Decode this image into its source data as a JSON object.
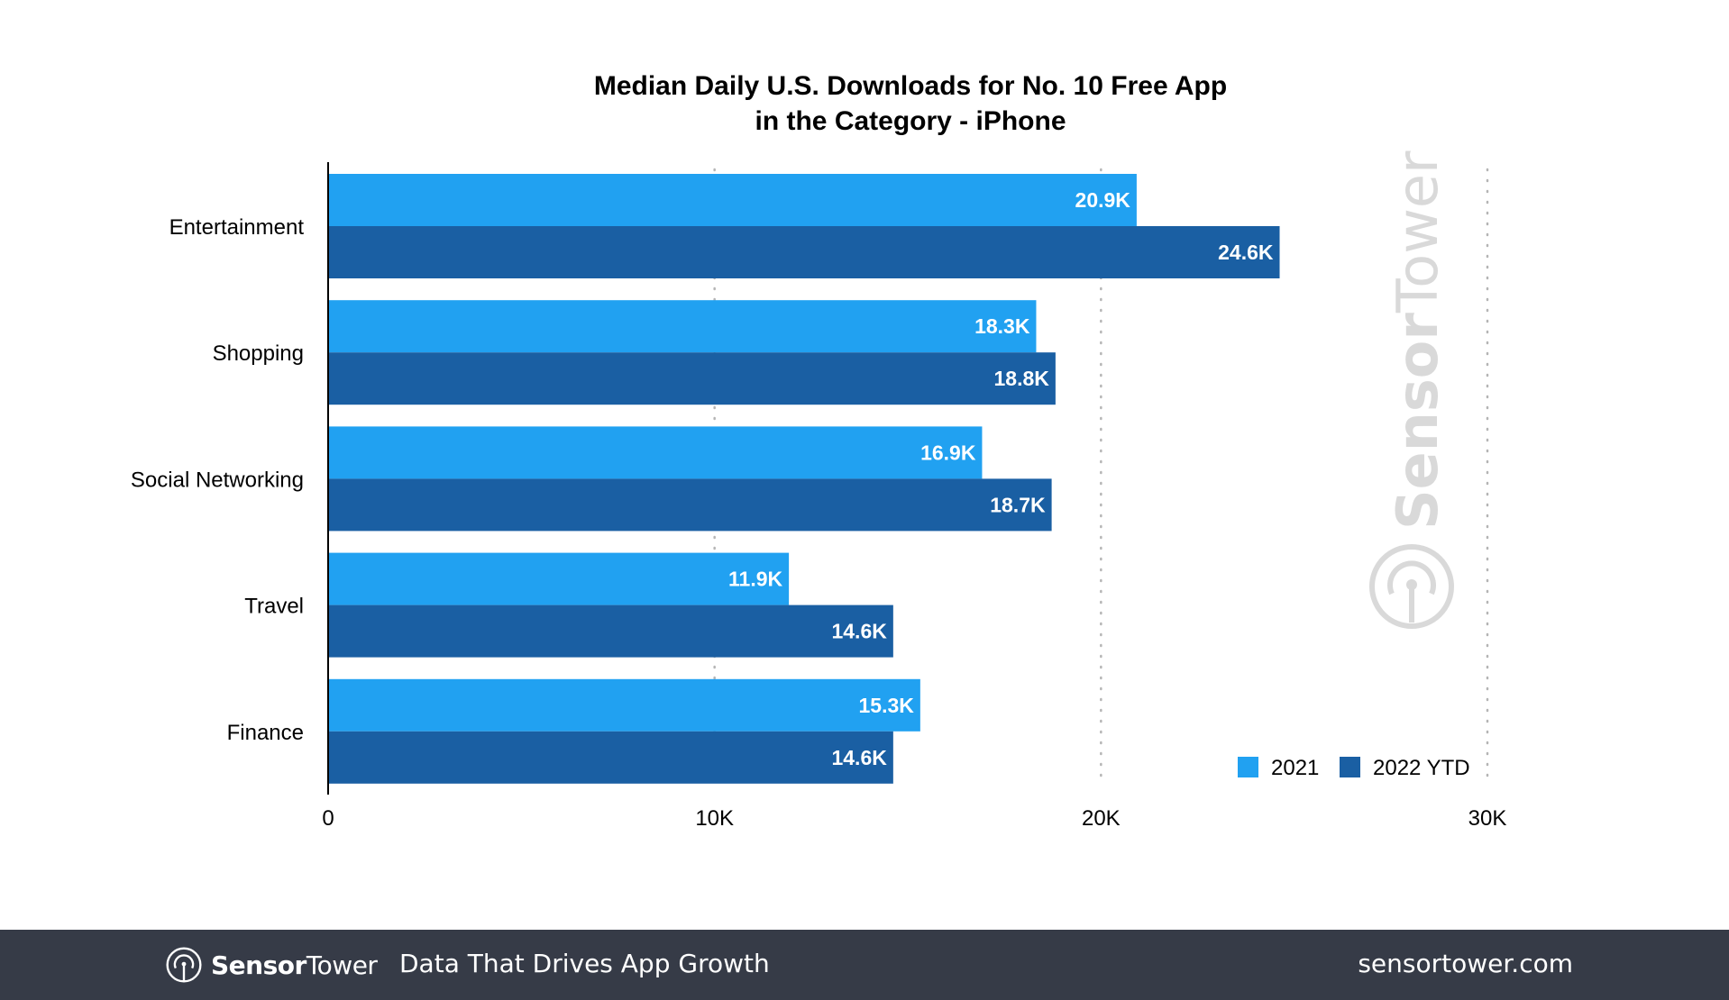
{
  "chart_data": {
    "type": "bar",
    "orientation": "horizontal",
    "title": "Median Daily U.S. Downloads for No. 10 Free App in the Category - iPhone",
    "title_lines": [
      "Median Daily U.S. Downloads for No. 10 Free App",
      "in the Category - iPhone"
    ],
    "categories": [
      "Entertainment",
      "Shopping",
      "Social Networking",
      "Travel",
      "Finance"
    ],
    "series": [
      {
        "name": "2021",
        "color": "#21a1f1",
        "values": [
          20.9,
          18.3,
          16.9,
          11.9,
          15.3
        ],
        "labels": [
          "20.9K",
          "18.3K",
          "16.9K",
          "11.9K",
          "15.3K"
        ]
      },
      {
        "name": "2022 YTD",
        "color": "#1a5fa3",
        "values": [
          24.6,
          18.8,
          18.7,
          14.6,
          14.6
        ],
        "labels": [
          "24.6K",
          "18.8K",
          "18.7K",
          "14.6K",
          "14.6K"
        ]
      }
    ],
    "units": "thousands of downloads",
    "xlabel": "",
    "ylabel": "",
    "xlim": [
      0,
      30
    ],
    "xticks": [
      0,
      10,
      20,
      30
    ],
    "xtick_labels": [
      "0",
      "10K",
      "20K",
      "30K"
    ],
    "grid": "vertical dotted",
    "legend": {
      "placement": "bottom-right",
      "entries": [
        "2021",
        "2022 YTD"
      ]
    },
    "watermark": "SensorTower"
  },
  "footer": {
    "brand_bold": "Sensor",
    "brand_light": "Tower",
    "tagline": "Data That Drives App Growth",
    "url": "sensortower.com",
    "background": "#363b47"
  }
}
